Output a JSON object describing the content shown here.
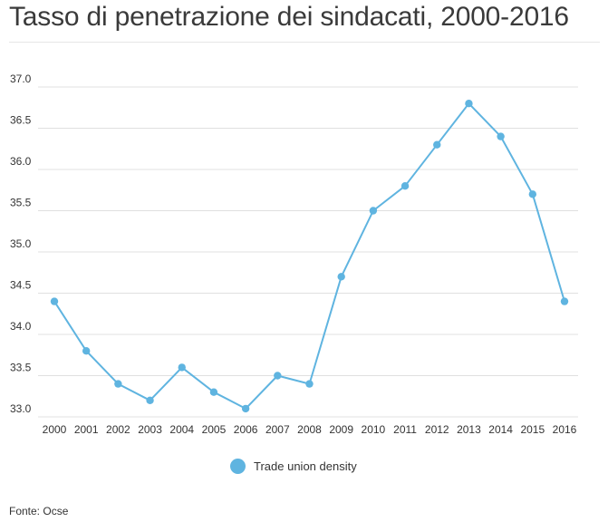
{
  "page": {
    "title": "Tasso di penetrazione dei sindacati, 2000-2016",
    "source": "Fonte: Ocse"
  },
  "colors": {
    "series": "#5fb4e0",
    "grid": "#e0e0e0",
    "text": "#333333"
  },
  "chart_data": {
    "type": "line",
    "title": "Tasso di penetrazione dei sindacati, 2000-2016",
    "xlabel": "",
    "ylabel": "",
    "x": [
      "2000",
      "2001",
      "2002",
      "2003",
      "2004",
      "2005",
      "2006",
      "2007",
      "2008",
      "2009",
      "2010",
      "2011",
      "2012",
      "2013",
      "2014",
      "2015",
      "2016"
    ],
    "yticks": [
      "33.0",
      "33.5",
      "34.0",
      "34.5",
      "35.0",
      "35.5",
      "36.0",
      "36.5",
      "37.0"
    ],
    "ylim": [
      33.0,
      37.0
    ],
    "grid": true,
    "legend": "bottom-center",
    "series": [
      {
        "name": "Trade union density",
        "values": [
          34.4,
          33.8,
          33.4,
          33.2,
          33.6,
          33.3,
          33.1,
          33.5,
          33.4,
          34.7,
          35.5,
          35.8,
          36.3,
          36.8,
          36.4,
          35.7,
          34.4
        ]
      }
    ]
  }
}
